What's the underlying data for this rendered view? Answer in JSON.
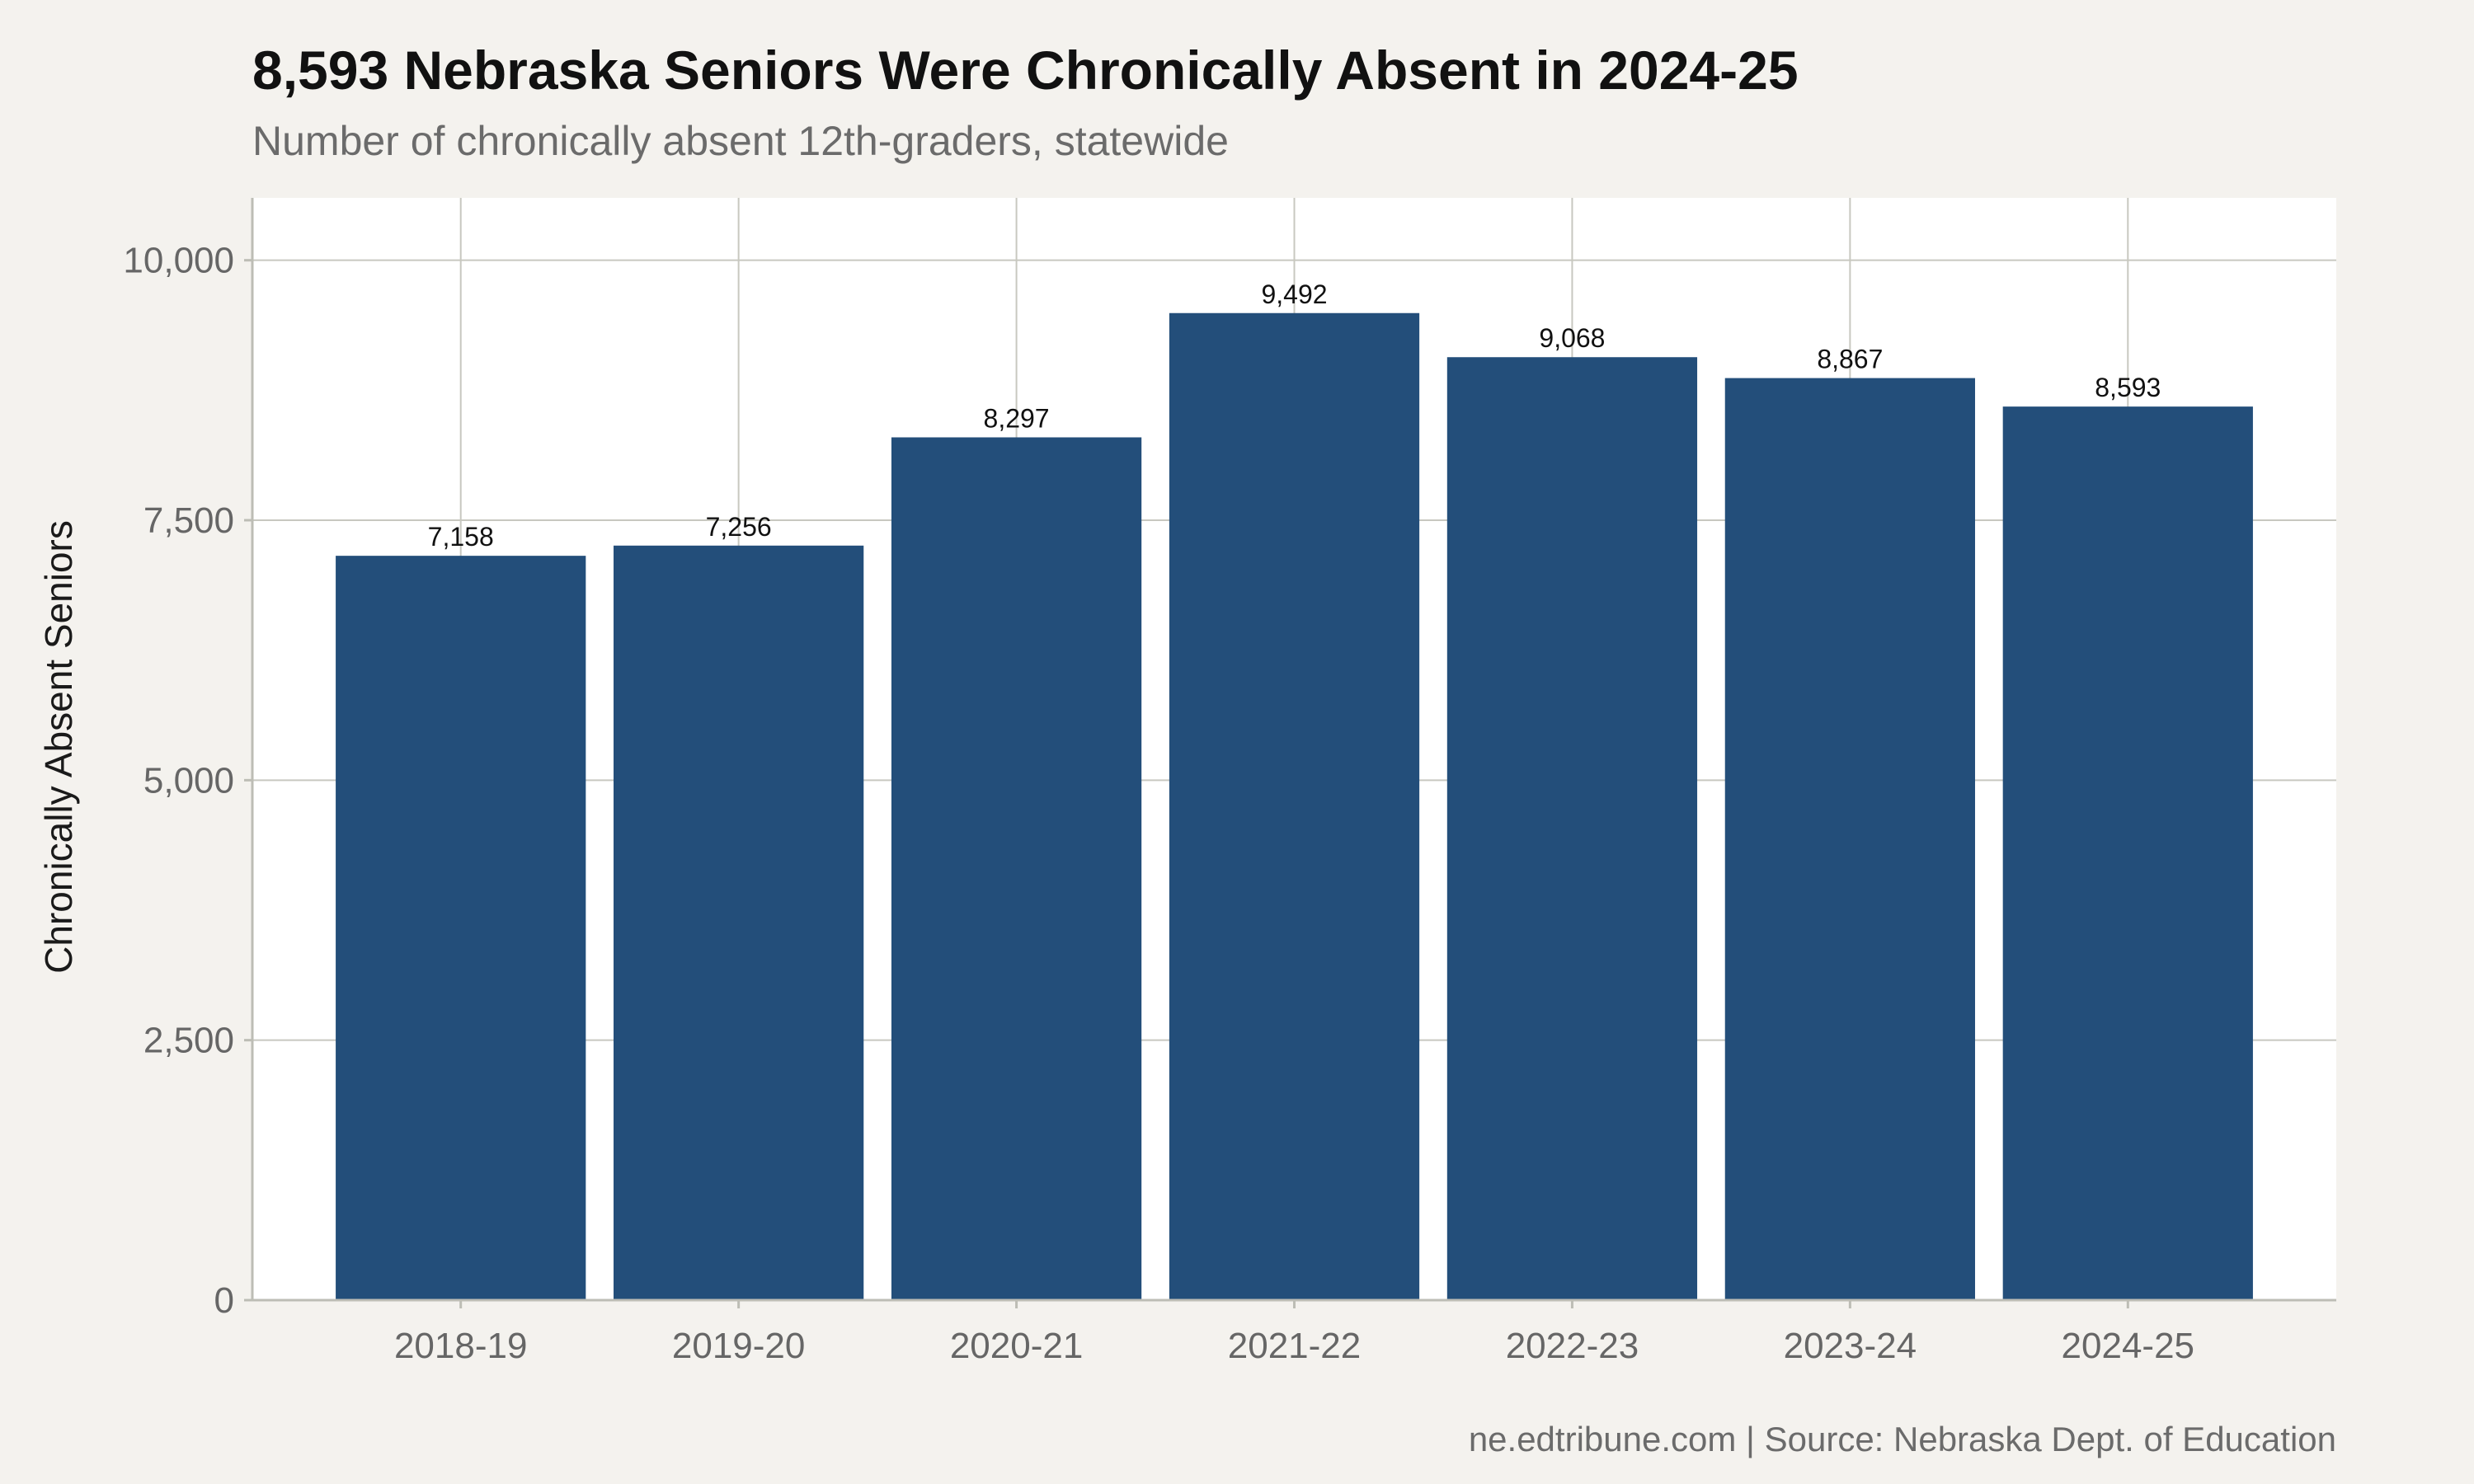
{
  "chart_data": {
    "type": "bar",
    "title": "8,593 Nebraska Seniors Were Chronically Absent in 2024-25",
    "subtitle": "Number of chronically absent 12th-graders, statewide",
    "xlabel": "",
    "ylabel": "Chronically Absent Seniors",
    "categories": [
      "2018-19",
      "2019-20",
      "2020-21",
      "2021-22",
      "2022-23",
      "2023-24",
      "2024-25"
    ],
    "values": [
      7158,
      7256,
      8297,
      9492,
      9068,
      8867,
      8593
    ],
    "data_labels": [
      "7,158",
      "7,256",
      "8,297",
      "9,492",
      "9,068",
      "8,867",
      "8,593"
    ],
    "ylim": [
      0,
      10600
    ],
    "yticks": [
      0,
      2500,
      5000,
      7500,
      10000
    ],
    "ytick_labels": [
      "0",
      "2,500",
      "5,000",
      "7,500",
      "10,000"
    ],
    "grid": true,
    "legend": "none",
    "caption": "ne.edtribune.com | Source: Nebraska Dept. of Education",
    "colors": {
      "bar": "#234e7a",
      "panel": "#ffffff",
      "background": "#f4f2ee",
      "grid": "#c8c8c0"
    }
  }
}
